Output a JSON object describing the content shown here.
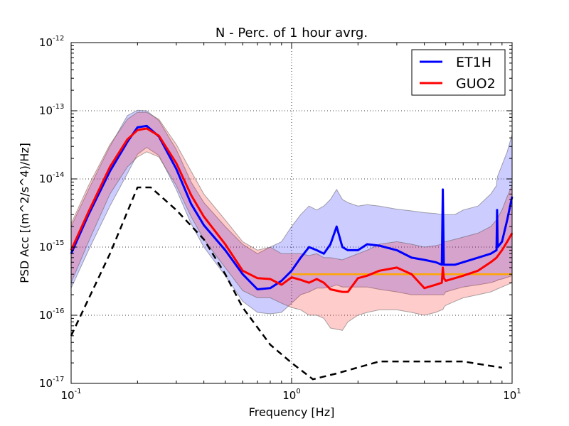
{
  "chart_data": {
    "type": "line",
    "title": "N - Perc. of 1 hour avrg.",
    "xlabel": "Frequency [Hz]",
    "ylabel": "PSD Acc [(m^2/s^4)/Hz]",
    "xscale": "log",
    "yscale": "log",
    "xlim": [
      0.1,
      10
    ],
    "ylim": [
      1e-17,
      1e-12
    ],
    "grid": true,
    "legend_position": "top-right",
    "x_ticks": [
      {
        "value": 0.1,
        "base": "10",
        "exp": "-1"
      },
      {
        "value": 1,
        "base": "10",
        "exp": "0"
      },
      {
        "value": 10,
        "base": "10",
        "exp": "1"
      }
    ],
    "y_ticks": [
      {
        "value": 1e-17,
        "base": "10",
        "exp": "-17"
      },
      {
        "value": 1e-16,
        "base": "10",
        "exp": "-16"
      },
      {
        "value": 1e-15,
        "base": "10",
        "exp": "-15"
      },
      {
        "value": 1e-14,
        "base": "10",
        "exp": "-14"
      },
      {
        "value": 1e-13,
        "base": "10",
        "exp": "-13"
      },
      {
        "value": 1e-12,
        "base": "10",
        "exp": "-12"
      }
    ],
    "series": [
      {
        "name": "ET1H",
        "color": "#0000ff",
        "band_color": "#0000ff",
        "x": [
          0.1,
          0.12,
          0.15,
          0.18,
          0.2,
          0.22,
          0.25,
          0.3,
          0.35,
          0.4,
          0.5,
          0.6,
          0.7,
          0.8,
          0.9,
          1.0,
          1.1,
          1.2,
          1.3,
          1.4,
          1.5,
          1.6,
          1.7,
          1.8,
          2.0,
          2.2,
          2.5,
          3.0,
          3.5,
          4.0,
          4.5,
          4.8,
          4.85,
          4.9,
          5.0,
          5.5,
          6.0,
          7.0,
          8.0,
          8.5,
          8.55,
          8.6,
          9.0,
          9.5,
          10.0
        ],
        "y": [
          8e-16,
          3e-15,
          1.3e-14,
          3.5e-14,
          5.7e-14,
          6e-14,
          4.2e-14,
          1.4e-14,
          4.3e-15,
          2.1e-15,
          9e-16,
          4e-16,
          2.4e-16,
          2.5e-16,
          3.2e-16,
          4.5e-16,
          7e-16,
          1e-15,
          9e-16,
          8e-16,
          1.1e-15,
          2e-15,
          1e-15,
          9e-16,
          9e-16,
          1.1e-15,
          1.05e-15,
          9e-16,
          7e-16,
          6.5e-16,
          6e-16,
          5.5e-16,
          7e-15,
          5.5e-16,
          5.5e-16,
          5.5e-16,
          6e-16,
          7e-16,
          8e-16,
          9e-16,
          3.5e-15,
          1e-15,
          1.2e-15,
          2.5e-15,
          5.5e-15
        ],
        "band_lower": [
          2.5e-16,
          9e-16,
          4e-15,
          1.2e-14,
          2.3e-14,
          2.9e-14,
          2.2e-14,
          7e-15,
          2.2e-15,
          1e-15,
          3.8e-16,
          1.6e-16,
          1.1e-16,
          1.05e-16,
          1.1e-16,
          1.5e-16,
          2e-16,
          2.2e-16,
          2.5e-16,
          2.5e-16,
          2.6e-16,
          2.8e-16,
          2.6e-16,
          2.6e-16,
          2.6e-16,
          2.6e-16,
          2.4e-16,
          2.2e-16,
          2e-16,
          2e-16,
          2e-16,
          2e-16,
          2e-16,
          2e-16,
          2.2e-16,
          2.4e-16,
          2.6e-16,
          2.8e-16,
          3e-16,
          3.2e-16,
          3.2e-16,
          3.3e-16,
          3.4e-16,
          3.6e-16,
          3.8e-16
        ],
        "band_upper": [
          2e-15,
          7e-15,
          3e-14,
          8.5e-14,
          1.02e-13,
          1e-13,
          7.2e-14,
          2.7e-14,
          9e-15,
          4.5e-15,
          2e-15,
          1.1e-15,
          8e-16,
          1e-15,
          1.2e-15,
          2e-15,
          3e-15,
          4e-15,
          3.5e-15,
          4e-15,
          5e-15,
          7e-15,
          5e-15,
          4.5e-15,
          4e-15,
          4.2e-15,
          4e-15,
          3.6e-15,
          3.4e-15,
          3.2e-15,
          3.1e-15,
          3e-15,
          3e-15,
          3e-15,
          3e-15,
          3e-15,
          3.5e-15,
          4e-15,
          6e-15,
          8e-15,
          1e-14,
          1.1e-14,
          1.6e-14,
          2.5e-14,
          4.5e-14
        ]
      },
      {
        "name": "GUO2",
        "color": "#ff0000",
        "band_color": "#ff0000",
        "x": [
          0.1,
          0.12,
          0.15,
          0.18,
          0.2,
          0.22,
          0.25,
          0.3,
          0.35,
          0.4,
          0.5,
          0.6,
          0.7,
          0.8,
          0.9,
          1.0,
          1.1,
          1.2,
          1.3,
          1.4,
          1.5,
          1.7,
          1.8,
          2.0,
          2.2,
          2.5,
          3.0,
          3.5,
          4.0,
          4.5,
          4.8,
          4.85,
          4.9,
          5.0,
          5.5,
          6.0,
          7.0,
          8.0,
          8.5,
          9.0,
          9.5,
          10.0
        ],
        "y": [
          9e-16,
          3.3e-15,
          1.5e-14,
          3.8e-14,
          5.2e-14,
          5.5e-14,
          4.3e-14,
          1.7e-14,
          5.8e-15,
          2.8e-15,
          1.1e-15,
          4.5e-16,
          3.5e-16,
          3.4e-16,
          2.8e-16,
          3.6e-16,
          3.3e-16,
          3e-16,
          3.4e-16,
          3e-16,
          2.4e-16,
          2.2e-16,
          2.2e-16,
          3.5e-16,
          3.8e-16,
          4.5e-16,
          5e-16,
          4e-16,
          2.5e-16,
          2.8e-16,
          3e-16,
          5e-16,
          3.5e-16,
          3.2e-16,
          3.5e-16,
          3.8e-16,
          4.5e-16,
          6e-16,
          7e-16,
          9e-16,
          1.2e-15,
          1.6e-15
        ],
        "band_lower": [
          3e-16,
          1.2e-15,
          6e-15,
          1.5e-14,
          2.1e-14,
          2.5e-14,
          2.1e-14,
          8e-15,
          2.8e-15,
          1.3e-15,
          5e-16,
          2.3e-16,
          1.8e-16,
          1.8e-16,
          1.5e-16,
          1.3e-16,
          1.2e-16,
          1e-16,
          1e-16,
          9e-17,
          6.5e-17,
          6e-17,
          8e-17,
          1e-16,
          1.1e-16,
          1.2e-16,
          1.2e-16,
          1.1e-16,
          1e-16,
          1.1e-16,
          1.2e-16,
          1.2e-16,
          1.3e-16,
          1.4e-16,
          1.6e-16,
          1.8e-16,
          2e-16,
          2.2e-16,
          2.4e-16,
          2.6e-16,
          2.8e-16,
          3e-16
        ],
        "band_upper": [
          2.2e-15,
          8e-15,
          3.2e-14,
          7.5e-14,
          9.5e-14,
          9.5e-14,
          7.5e-14,
          3.2e-14,
          1.3e-14,
          6e-15,
          2.5e-15,
          1.2e-15,
          9e-16,
          1e-15,
          8e-16,
          8e-16,
          8e-16,
          7.5e-16,
          8e-16,
          7e-16,
          7e-16,
          6.5e-16,
          7e-16,
          8e-16,
          9e-16,
          1.1e-15,
          1.2e-15,
          1.1e-15,
          1e-15,
          1.05e-15,
          1.1e-15,
          2e-15,
          1.2e-15,
          1.2e-15,
          1.3e-15,
          1.4e-15,
          1.6e-15,
          2e-15,
          2.5e-15,
          3.5e-15,
          5.5e-15,
          8e-15
        ]
      },
      {
        "color": "#000000",
        "dash": true,
        "x": [
          0.1,
          0.15,
          0.2,
          0.23,
          0.3,
          0.4,
          0.5,
          0.6,
          0.8,
          1.0,
          1.25,
          1.6,
          2.5,
          4.0,
          6.0,
          9.0
        ],
        "y": [
          5e-17,
          8e-16,
          7.5e-15,
          7.5e-15,
          3.5e-15,
          1.3e-15,
          4e-16,
          1.3e-16,
          3.7e-17,
          2e-17,
          1.15e-17,
          1.4e-17,
          2.1e-17,
          2.1e-17,
          2.1e-17,
          1.7e-17
        ]
      },
      {
        "color": "#ffa500",
        "x": [
          1.0,
          10.0
        ],
        "y": [
          4e-16,
          4e-16
        ]
      }
    ]
  }
}
